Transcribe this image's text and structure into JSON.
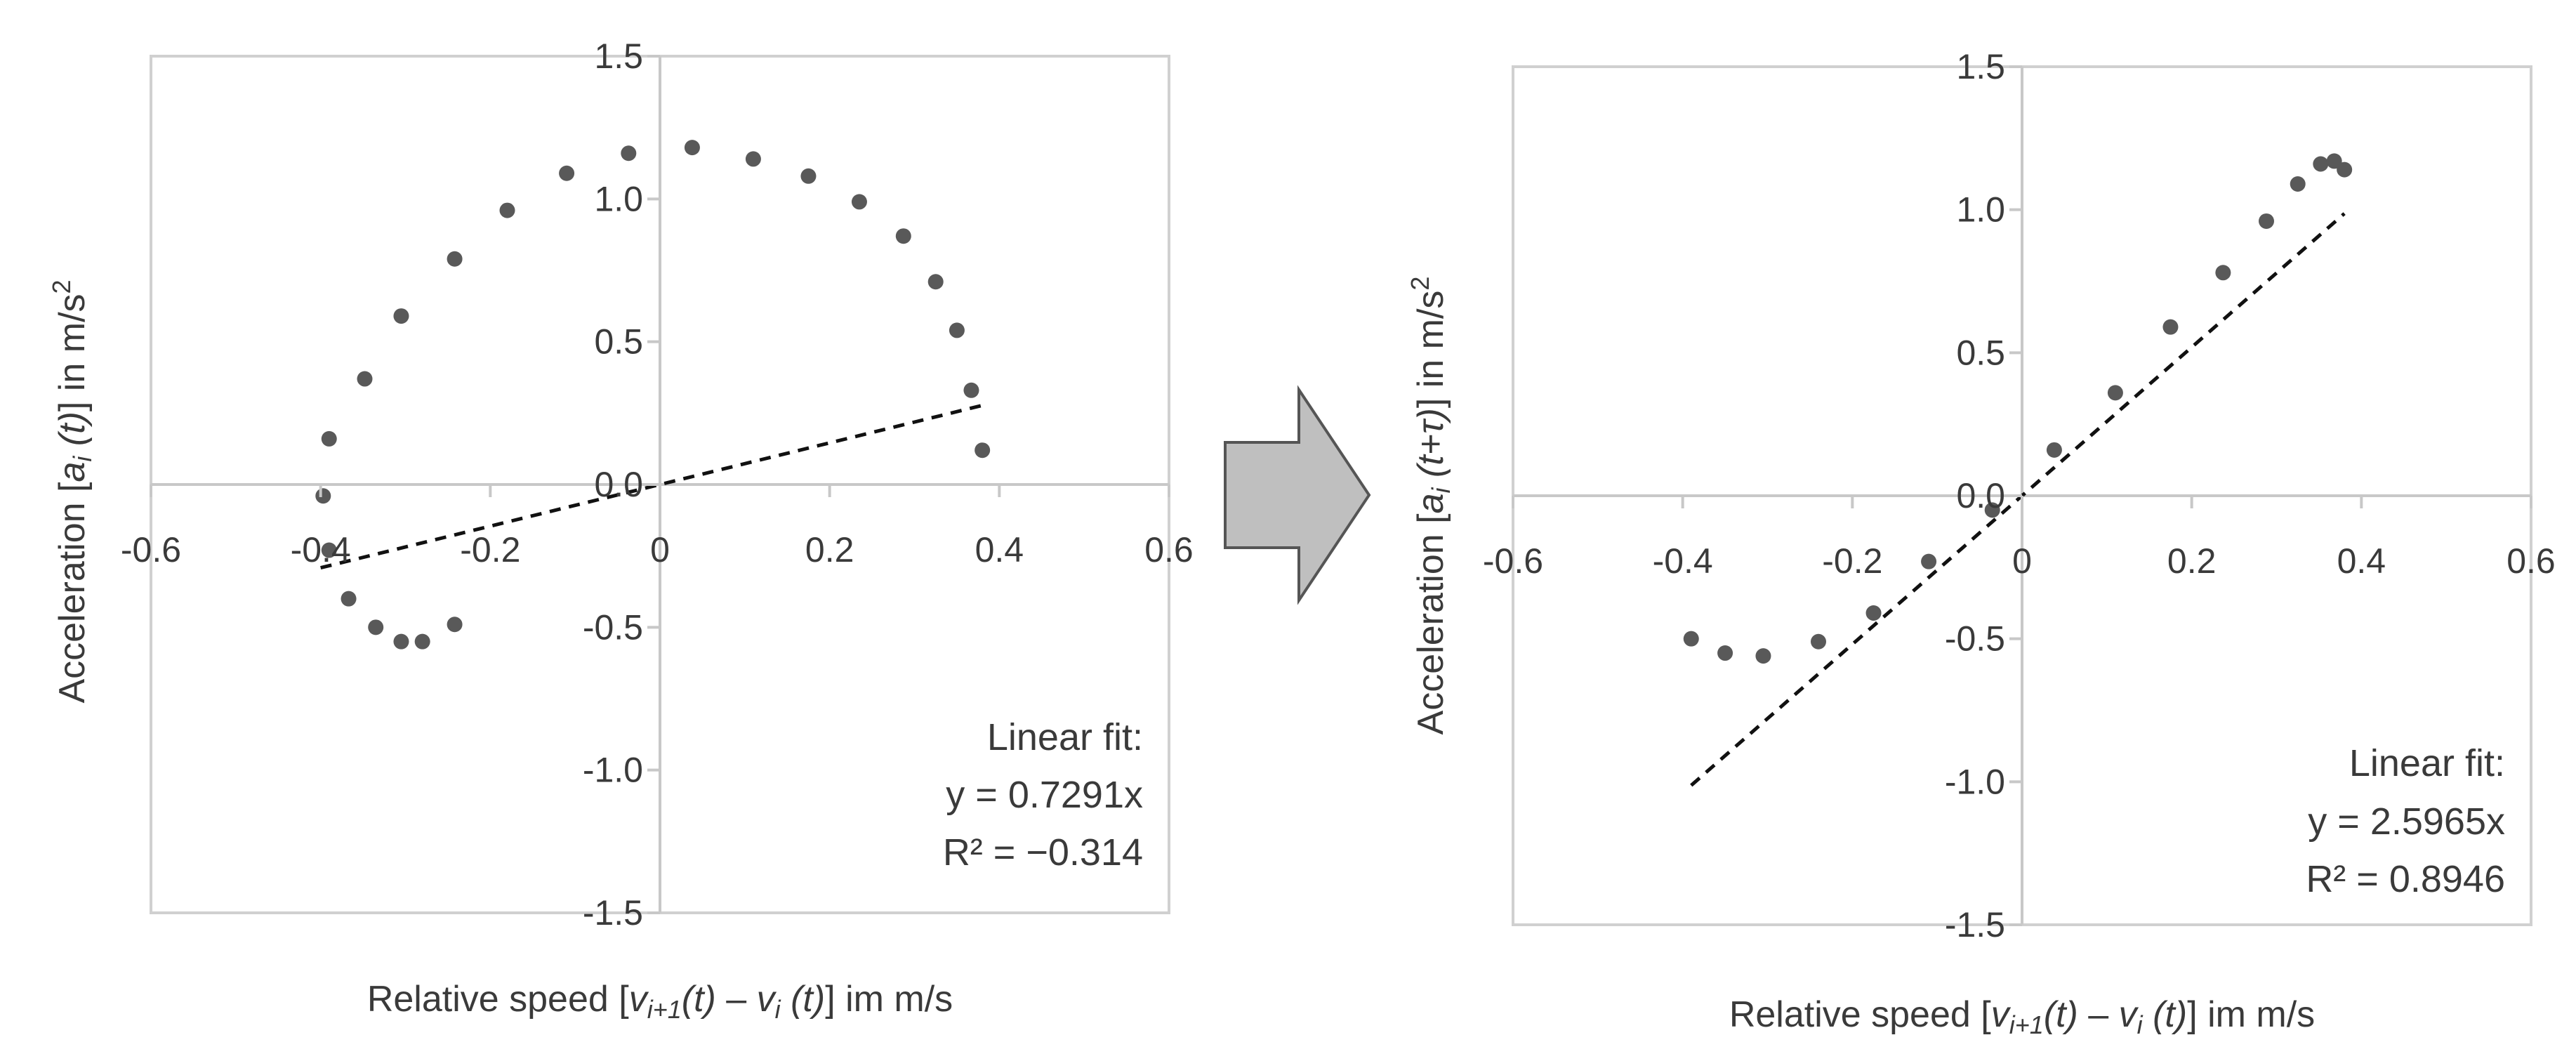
{
  "chart_data": [
    {
      "type": "scatter",
      "xlim": [
        -0.6,
        0.6
      ],
      "ylim": [
        -1.5,
        1.5
      ],
      "x_ticks": [
        "-0.6",
        "-0.4",
        "-0.2",
        "0",
        "0.2",
        "0.4",
        "0.6"
      ],
      "y_ticks": [
        "1.5",
        "1.0",
        "0.5",
        "0.0",
        "-0.5",
        "-1.0",
        "-1.5"
      ],
      "y_tick_values": [
        1.5,
        1.0,
        0.5,
        0.0,
        -0.5,
        -1.0,
        -1.5
      ],
      "ylabel": {
        "pre": "Acceleration [",
        "a": "a",
        "sub": "i",
        "arg": " (t)",
        "post": "] in m/s",
        "sup": "2"
      },
      "xlabel": {
        "pre": "Relative speed [",
        "v1": "v",
        "sub1": "i+1",
        "arg1": "(t)",
        "mid": " – ",
        "v2": "v",
        "sub2": "i",
        "arg2": " (t)",
        "post": "] im m/s"
      },
      "fit": {
        "label": "Linear fit:",
        "equation": "y = 0.7291x",
        "r2": "R² = −0.314",
        "slope": 0.7291,
        "x_range": [
          -0.4,
          0.38
        ]
      },
      "points": [
        {
          "x": -0.397,
          "y": -0.04
        },
        {
          "x": -0.39,
          "y": -0.23
        },
        {
          "x": -0.39,
          "y": 0.16
        },
        {
          "x": -0.367,
          "y": -0.4
        },
        {
          "x": -0.348,
          "y": 0.37
        },
        {
          "x": -0.335,
          "y": -0.5
        },
        {
          "x": -0.305,
          "y": -0.55
        },
        {
          "x": -0.305,
          "y": 0.59
        },
        {
          "x": -0.28,
          "y": -0.55
        },
        {
          "x": -0.242,
          "y": -0.49
        },
        {
          "x": -0.242,
          "y": 0.79
        },
        {
          "x": -0.18,
          "y": 0.96
        },
        {
          "x": -0.11,
          "y": 1.09
        },
        {
          "x": -0.037,
          "y": 1.16
        },
        {
          "x": 0.038,
          "y": 1.18
        },
        {
          "x": 0.11,
          "y": 1.14
        },
        {
          "x": 0.175,
          "y": 1.08
        },
        {
          "x": 0.235,
          "y": 0.99
        },
        {
          "x": 0.287,
          "y": 0.87
        },
        {
          "x": 0.325,
          "y": 0.71
        },
        {
          "x": 0.35,
          "y": 0.54
        },
        {
          "x": 0.367,
          "y": 0.33
        },
        {
          "x": 0.38,
          "y": 0.12
        }
      ]
    },
    {
      "type": "scatter",
      "xlim": [
        -0.6,
        0.6
      ],
      "ylim": [
        -1.5,
        1.5
      ],
      "x_ticks": [
        "-0.6",
        "-0.4",
        "-0.2",
        "0",
        "0.2",
        "0.4",
        "0.6"
      ],
      "y_ticks": [
        "1.5",
        "1.0",
        "0.5",
        "0.0",
        "-0.5",
        "-1.0",
        "-1.5"
      ],
      "y_tick_values": [
        1.5,
        1.0,
        0.5,
        0.0,
        -0.5,
        -1.0,
        -1.5
      ],
      "ylabel": {
        "pre": "Acceleration [",
        "a": "a",
        "sub": "i",
        "arg": " (t+τ)",
        "post": "] in m/s",
        "sup": "2"
      },
      "xlabel": {
        "pre": "Relative speed [",
        "v1": "v",
        "sub1": "i+1",
        "arg1": "(t)",
        "mid": " – ",
        "v2": "v",
        "sub2": "i",
        "arg2": " (t)",
        "post": "] im m/s"
      },
      "fit": {
        "label": "Linear fit:",
        "equation": "y = 2.5965x",
        "r2": "R² = 0.8946",
        "slope": 2.5965,
        "x_range": [
          -0.39,
          0.38
        ]
      },
      "points": [
        {
          "x": -0.39,
          "y": -0.5
        },
        {
          "x": -0.35,
          "y": -0.55
        },
        {
          "x": -0.305,
          "y": -0.56
        },
        {
          "x": -0.24,
          "y": -0.51
        },
        {
          "x": -0.175,
          "y": -0.41
        },
        {
          "x": -0.11,
          "y": -0.23
        },
        {
          "x": -0.035,
          "y": -0.05
        },
        {
          "x": 0.038,
          "y": 0.16
        },
        {
          "x": 0.11,
          "y": 0.36
        },
        {
          "x": 0.175,
          "y": 0.59
        },
        {
          "x": 0.237,
          "y": 0.78
        },
        {
          "x": 0.288,
          "y": 0.96
        },
        {
          "x": 0.325,
          "y": 1.09
        },
        {
          "x": 0.352,
          "y": 1.16
        },
        {
          "x": 0.368,
          "y": 1.17
        },
        {
          "x": 0.38,
          "y": 1.14
        }
      ]
    }
  ],
  "arrow": {
    "color": "#bfbfbf",
    "stroke": "#555555"
  }
}
